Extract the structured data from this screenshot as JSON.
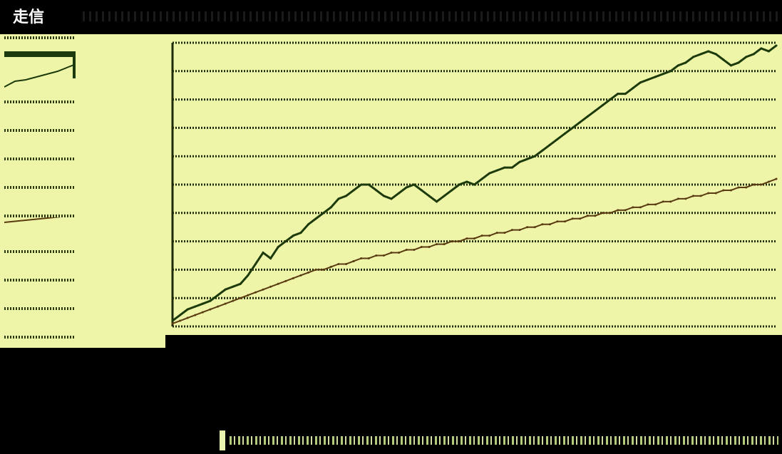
{
  "window": {
    "title": "走信"
  },
  "left_panel": {
    "rows": [
      "",
      "",
      "",
      "",
      "",
      "",
      "",
      "",
      "",
      ""
    ]
  },
  "chart_data": {
    "type": "line",
    "title": "",
    "xlabel": "",
    "ylabel": "",
    "x": [
      0,
      1,
      2,
      3,
      4,
      5,
      6,
      7,
      8,
      9,
      10,
      11,
      12,
      13,
      14,
      15,
      16,
      17,
      18,
      19,
      20,
      21,
      22,
      23,
      24,
      25,
      26,
      27,
      28,
      29,
      30,
      31,
      32,
      33,
      34,
      35,
      36,
      37,
      38,
      39,
      40,
      41,
      42,
      43,
      44,
      45,
      46,
      47,
      48,
      49,
      50,
      51,
      52,
      53,
      54,
      55,
      56,
      57,
      58,
      59,
      60,
      61,
      62,
      63,
      64,
      65,
      66,
      67,
      68,
      69,
      70,
      71,
      72,
      73,
      74,
      75,
      76,
      77,
      78,
      79,
      80
    ],
    "ylim": [
      0,
      100
    ],
    "grid": true,
    "legend": "none",
    "y_tick_labels": [
      "",
      "",
      "",
      "",
      "",
      "",
      "",
      "",
      "",
      ""
    ],
    "x_tick_labels": [
      "",
      "",
      "",
      "",
      "",
      "",
      "",
      "",
      "",
      "",
      "",
      "",
      "",
      "",
      "",
      "",
      "",
      ""
    ],
    "series": [
      {
        "color": "#1c3a0c",
        "values": [
          2,
          4,
          6,
          7,
          8,
          9,
          11,
          13,
          14,
          15,
          18,
          22,
          26,
          24,
          28,
          30,
          32,
          33,
          36,
          38,
          40,
          42,
          45,
          46,
          48,
          50,
          50,
          48,
          46,
          45,
          47,
          49,
          50,
          48,
          46,
          44,
          46,
          48,
          50,
          51,
          50,
          52,
          54,
          55,
          56,
          56,
          58,
          59,
          60,
          62,
          64,
          66,
          68,
          70,
          72,
          74,
          76,
          78,
          80,
          82,
          82,
          84,
          86,
          87,
          88,
          89,
          90,
          92,
          93,
          95,
          96,
          97,
          96,
          94,
          92,
          93,
          95,
          96,
          98,
          97,
          99
        ]
      },
      {
        "color": "#5a3a10",
        "values": [
          1,
          2,
          3,
          4,
          5,
          6,
          7,
          8,
          9,
          10,
          11,
          12,
          13,
          14,
          15,
          16,
          17,
          18,
          19,
          20,
          20,
          21,
          22,
          22,
          23,
          24,
          24,
          25,
          25,
          26,
          26,
          27,
          27,
          28,
          28,
          29,
          29,
          30,
          30,
          31,
          31,
          32,
          32,
          33,
          33,
          34,
          34,
          35,
          35,
          36,
          36,
          37,
          37,
          38,
          38,
          39,
          39,
          40,
          40,
          41,
          41,
          42,
          42,
          43,
          43,
          44,
          44,
          45,
          45,
          46,
          46,
          47,
          47,
          48,
          48,
          49,
          49,
          50,
          50,
          51,
          52
        ]
      }
    ]
  },
  "table": {
    "headers": [
      "",
      "",
      "",
      "",
      "",
      "",
      "",
      "",
      "",
      "",
      "",
      "",
      "",
      "",
      "",
      "",
      "",
      "",
      "",
      "",
      "",
      "",
      "",
      "",
      "",
      "",
      ""
    ],
    "rows": [
      [
        "",
        "",
        "",
        "",
        "",
        "",
        "",
        "",
        "",
        "",
        "",
        "",
        "",
        "",
        "",
        "",
        "",
        "",
        "",
        "",
        "",
        "",
        "",
        "",
        "",
        "",
        ""
      ],
      [
        "",
        "",
        "",
        "",
        "",
        "",
        "",
        "",
        "",
        "",
        "",
        "",
        "",
        "",
        "",
        "",
        "",
        "",
        "",
        "",
        "",
        "",
        "",
        "",
        "",
        "",
        ""
      ],
      [
        "",
        "",
        "",
        "",
        "",
        "",
        "",
        "",
        "",
        "",
        "",
        "",
        "",
        "",
        "",
        "",
        "",
        "",
        "",
        "",
        "",
        "",
        "",
        "",
        "",
        "",
        ""
      ],
      [
        "",
        "",
        "",
        "",
        "",
        "",
        "",
        "",
        "",
        "",
        "",
        "",
        "",
        "",
        "",
        "",
        "",
        "",
        "",
        "",
        "",
        "",
        "",
        "",
        "",
        "",
        ""
      ],
      [
        "",
        "",
        "",
        "",
        "",
        "",
        "",
        "",
        "",
        "",
        "",
        "",
        "",
        "",
        "",
        "",
        "",
        "",
        "",
        "",
        "",
        "",
        "",
        "",
        "",
        "",
        ""
      ],
      [
        "",
        "",
        "",
        "",
        "",
        "",
        "",
        "",
        "",
        "",
        "",
        "",
        "",
        "",
        "",
        "",
        "",
        "",
        "",
        "",
        "",
        "",
        "",
        "",
        "",
        "",
        ""
      ],
      [
        "",
        "",
        "",
        "",
        "",
        "",
        "",
        "",
        "",
        "",
        "",
        "",
        "",
        "",
        "",
        "",
        "",
        "",
        "",
        "",
        "",
        "",
        "",
        "",
        "",
        "",
        ""
      ],
      [
        "",
        "",
        "",
        "",
        "",
        "",
        "",
        "",
        "",
        "",
        "",
        "",
        "",
        "",
        "",
        "",
        "",
        "",
        "",
        "",
        "",
        "",
        "",
        "",
        "",
        "",
        ""
      ]
    ]
  },
  "footer": {
    "text": ""
  },
  "colors": {
    "plot_bg": "#eef5a8",
    "frame_bg": "#000000",
    "grid": "#1c2a08",
    "series_primary": "#1c3a0c",
    "series_secondary": "#5a3a10"
  }
}
